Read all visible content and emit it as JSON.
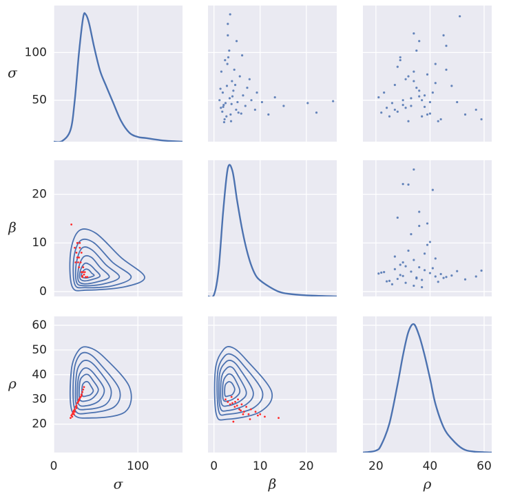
{
  "chart_data": [
    {
      "type": "kde",
      "color": "#4c72b0",
      "ylabel": "σ",
      "x": [
        0,
        10,
        20,
        25,
        30,
        35,
        38,
        42,
        48,
        55,
        62,
        70,
        80,
        90,
        100,
        110,
        130,
        153
      ],
      "values": [
        0,
        0.0001,
        0.002,
        0.007,
        0.015,
        0.021,
        0.0215,
        0.02,
        0.016,
        0.012,
        0.0095,
        0.0068,
        0.0035,
        0.0015,
        0.0008,
        0.0006,
        0.0002,
        0
      ],
      "density_lim": [
        0,
        0.023
      ],
      "xlim": [
        0,
        153
      ],
      "xticks": [
        0,
        100
      ],
      "ylim": [
        6.5,
        149.3
      ],
      "yticks": [
        50,
        100
      ],
      "grid": true
    },
    {
      "type": "scatter",
      "color": "#4c72b0",
      "x": [
        2.1,
        3.4,
        1.8,
        4.2,
        5.1,
        2.7,
        3.9,
        6.3,
        1.5,
        2.9,
        4.8,
        7.2,
        3.1,
        2.3,
        5.6,
        8.1,
        1.9,
        3.6,
        4.4,
        2.5,
        6.8,
        9.3,
        3.3,
        1.2,
        2.8,
        5.3,
        4.0,
        3.7,
        7.7,
        2.0,
        1.6,
        4.6,
        3.0,
        5.9,
        2.4,
        10.4,
        11.8,
        13.2,
        15.1,
        20.3,
        22.2,
        25.8,
        3.5,
        3.0,
        4.9,
        6.1,
        8.9,
        2.2,
        1.4,
        3.8
      ],
      "y": [
        45,
        52,
        38,
        60,
        48,
        33,
        70,
        55,
        42,
        88,
        40,
        63,
        95,
        30,
        75,
        50,
        58,
        35,
        82,
        47,
        44,
        58,
        102,
        50,
        65,
        37,
        54,
        28,
        72,
        43,
        80,
        66,
        118,
        36,
        92,
        48,
        35,
        53,
        44,
        47,
        37,
        49,
        140,
        130,
        112,
        97,
        40,
        27,
        62,
        46
      ],
      "xlim": [
        -1.3,
        26.6
      ],
      "xticks": [
        0,
        10,
        20
      ],
      "ylim": [
        6.5,
        149.3
      ],
      "yticks": [
        50,
        100
      ],
      "grid": true
    },
    {
      "type": "scatter",
      "color": "#4c72b0",
      "x": [
        30,
        33,
        28,
        36,
        40,
        25,
        34,
        38,
        31,
        42,
        27,
        35,
        29,
        44,
        32,
        37,
        23,
        39,
        46,
        26,
        33,
        41,
        35,
        30,
        48,
        22,
        36,
        43,
        31,
        38,
        34,
        27,
        45,
        40,
        29,
        50,
        53,
        21,
        57,
        59,
        34,
        36,
        46,
        51,
        32,
        28,
        39,
        24,
        42,
        37
      ],
      "y": [
        45,
        52,
        38,
        60,
        48,
        33,
        70,
        55,
        42,
        88,
        40,
        63,
        95,
        30,
        75,
        50,
        58,
        35,
        82,
        47,
        44,
        58,
        102,
        50,
        65,
        37,
        54,
        28,
        72,
        43,
        80,
        66,
        118,
        36,
        92,
        48,
        35,
        53,
        40,
        30,
        120,
        112,
        107,
        138,
        28,
        85,
        77,
        42,
        68,
        33
      ],
      "xlim": [
        15.2,
        62.8
      ],
      "xticks": [
        20,
        40,
        60
      ],
      "ylim": [
        6.5,
        149.3
      ],
      "yticks": [
        50,
        100
      ],
      "grid": true
    },
    {
      "type": "contour",
      "color": "#4c72b0",
      "ylabel": "β",
      "levels": [
        {
          "x": [
            22,
            20,
            30,
            50,
            80,
            108,
            85,
            40
          ],
          "y": [
            1,
            8,
            12.5,
            12,
            7,
            3,
            1,
            0.3
          ]
        },
        {
          "x": [
            25,
            24,
            32,
            48,
            70,
            92,
            70,
            38
          ],
          "y": [
            1.5,
            7,
            10.5,
            10,
            6,
            3,
            1.2,
            0.8
          ]
        },
        {
          "x": [
            27,
            27,
            34,
            46,
            62,
            78,
            60,
            36
          ],
          "y": [
            2,
            6,
            9,
            8.5,
            5.5,
            3,
            1.6,
            1.2
          ]
        },
        {
          "x": [
            29,
            30,
            36,
            45,
            55,
            66,
            52,
            36
          ],
          "y": [
            2.4,
            5.2,
            7.2,
            7,
            5,
            3,
            2,
            1.6
          ]
        },
        {
          "x": [
            31,
            32,
            37,
            43,
            49,
            55,
            46,
            36
          ],
          "y": [
            2.8,
            4.5,
            5.8,
            5.5,
            4.5,
            3.2,
            2.5,
            2.2
          ]
        },
        {
          "x": [
            33,
            34,
            38,
            42,
            45,
            48,
            42,
            37
          ],
          "y": [
            3.1,
            4,
            4.6,
            4.4,
            3.8,
            3.3,
            2.9,
            2.8
          ]
        }
      ],
      "points": {
        "color": "#ff2a2a",
        "x": [
          21,
          25,
          27,
          28,
          30,
          32,
          30,
          33,
          35,
          36,
          34,
          38,
          31,
          29,
          33,
          35,
          37,
          28,
          26,
          40,
          31,
          34
        ],
        "y": [
          13.8,
          9,
          8,
          10,
          7,
          6,
          5,
          4,
          4,
          3.5,
          3,
          3,
          9,
          6,
          8,
          5,
          4,
          7,
          6,
          3,
          10,
          3.2
        ]
      },
      "xlim": [
        0,
        153
      ],
      "xticks": [
        0,
        100
      ],
      "ylim": [
        -1,
        27
      ],
      "yticks": [
        0,
        10,
        20
      ],
      "grid": true
    },
    {
      "type": "kde",
      "color": "#4c72b0",
      "x": [
        -1.3,
        0,
        1,
        2,
        3,
        4,
        5,
        6,
        7,
        8,
        9,
        10,
        12,
        14,
        16,
        20,
        26.6
      ],
      "values": [
        0,
        0.003,
        0.05,
        0.16,
        0.24,
        0.235,
        0.18,
        0.13,
        0.09,
        0.06,
        0.04,
        0.03,
        0.018,
        0.009,
        0.005,
        0.002,
        0
      ],
      "density_lim": [
        0,
        0.255
      ],
      "xlim": [
        -1.3,
        26.6
      ],
      "xticks": [
        0,
        10,
        20
      ],
      "ylim": [
        -1,
        27
      ],
      "yticks": [
        0,
        10,
        20
      ],
      "grid": true
    },
    {
      "type": "scatter",
      "color": "#4c72b0",
      "x": [
        30,
        33,
        28,
        36,
        40,
        25,
        34,
        38,
        31,
        42,
        27,
        35,
        29,
        44,
        32,
        37,
        23,
        39,
        46,
        26,
        33,
        41,
        35,
        30,
        48,
        22,
        36,
        43,
        31,
        38,
        34,
        27,
        45,
        40,
        29,
        50,
        53,
        21,
        57,
        59,
        34,
        30,
        32,
        41,
        36,
        28,
        39,
        24,
        42,
        37
      ],
      "y": [
        3.2,
        4.1,
        2.6,
        5.0,
        3.8,
        2.2,
        6.5,
        4.4,
        1.8,
        3.1,
        7.2,
        2.9,
        5.5,
        3.6,
        8.4,
        2.4,
        4.0,
        9.6,
        3.0,
        1.5,
        11.8,
        4.8,
        2.7,
        6.0,
        3.3,
        3.9,
        13.5,
        2.0,
        5.2,
        7.8,
        1.2,
        4.6,
        2.8,
        10.2,
        3.4,
        4.2,
        2.5,
        3.7,
        3.1,
        4.3,
        25.1,
        22.1,
        22.0,
        20.9,
        16.4,
        15.2,
        14.0,
        2.1,
        6.8,
        0.9
      ],
      "xlim": [
        15.2,
        62.8
      ],
      "xticks": [
        20,
        40,
        60
      ],
      "ylim": [
        -1,
        27
      ],
      "yticks": [
        0,
        10,
        20
      ],
      "grid": true
    },
    {
      "type": "contour",
      "color": "#4c72b0",
      "ylabel": "ρ",
      "xlabel": "σ",
      "levels": [
        {
          "x": [
            22,
            21,
            30,
            42,
            60,
            90,
            85,
            45
          ],
          "y": [
            25,
            42,
            50,
            51,
            47,
            35,
            25,
            22.5
          ]
        },
        {
          "x": [
            25,
            24,
            31,
            42,
            56,
            78,
            72,
            42
          ],
          "y": [
            26,
            41,
            48,
            48.5,
            44,
            34,
            27,
            24.5
          ]
        },
        {
          "x": [
            27,
            27,
            33,
            42,
            53,
            68,
            62,
            40
          ],
          "y": [
            27.5,
            40,
            45,
            45.5,
            42,
            34,
            28,
            26
          ]
        },
        {
          "x": [
            29,
            29,
            34,
            41,
            50,
            60,
            54,
            40
          ],
          "y": [
            28.5,
            38,
            42,
            42.5,
            39.5,
            34,
            29.5,
            27.5
          ]
        },
        {
          "x": [
            31,
            31,
            35,
            41,
            47,
            53,
            48,
            40
          ],
          "y": [
            30,
            37,
            39.5,
            40,
            37.5,
            34,
            31,
            29.5
          ]
        },
        {
          "x": [
            34,
            34,
            37,
            41,
            44,
            47,
            44,
            40
          ],
          "y": [
            31.5,
            35.5,
            37,
            37,
            35.5,
            33.5,
            32,
            31.5
          ]
        }
      ],
      "points": {
        "color": "#ff2a2a",
        "x": [
          20,
          21,
          22,
          23,
          24,
          25,
          26,
          27,
          28,
          29,
          30,
          31,
          32,
          33,
          34,
          35,
          36,
          23,
          25,
          27,
          30,
          33,
          22,
          24
        ],
        "y": [
          22.5,
          23.5,
          24,
          25,
          25.5,
          26,
          27,
          27.5,
          28.5,
          29,
          30,
          30.5,
          31,
          32,
          33,
          34,
          35,
          24.5,
          25,
          26.5,
          29.5,
          31.5,
          23,
          24
        ]
      },
      "xlim": [
        0,
        153
      ],
      "xticks": [
        0,
        100
      ],
      "ylim": [
        8.5,
        63.6
      ],
      "yticks": [
        20,
        30,
        40,
        50,
        60
      ],
      "grid": true
    },
    {
      "type": "contour",
      "color": "#4c72b0",
      "xlabel": "β",
      "levels": [
        {
          "x": [
            0.5,
            0.3,
            2,
            4,
            7,
            12.5,
            10,
            3
          ],
          "y": [
            24,
            42,
            50,
            51,
            46,
            33,
            25,
            22
          ]
        },
        {
          "x": [
            1,
            0.8,
            2.3,
            4,
            6.3,
            10.5,
            8.5,
            3
          ],
          "y": [
            25.5,
            41,
            47.5,
            48,
            44,
            33,
            26.5,
            24
          ]
        },
        {
          "x": [
            1.3,
            1.2,
            2.5,
            4,
            5.7,
            8.5,
            7,
            3.1
          ],
          "y": [
            27,
            40,
            45,
            45.5,
            42,
            33,
            28,
            25.5
          ]
        },
        {
          "x": [
            1.6,
            1.6,
            2.7,
            3.9,
            5.1,
            7,
            5.8,
            3.2
          ],
          "y": [
            28.5,
            38.5,
            42.5,
            43,
            40,
            33,
            29.5,
            27.5
          ]
        },
        {
          "x": [
            2,
            2,
            2.9,
            3.8,
            4.6,
            5.6,
            4.8,
            3.3
          ],
          "y": [
            30,
            37,
            40,
            40,
            38,
            33.5,
            31,
            29.5
          ]
        },
        {
          "x": [
            2.4,
            2.4,
            3,
            3.6,
            4.1,
            4.5,
            4,
            3.3
          ],
          "y": [
            31.5,
            35.5,
            37,
            37,
            36,
            34,
            32,
            31.5
          ]
        }
      ],
      "points": {
        "color": "#ff2a2a",
        "x": [
          2.5,
          3,
          3.5,
          4,
          4.5,
          5,
          5.5,
          6,
          6.5,
          7,
          7.5,
          8,
          9,
          10,
          11,
          14,
          3.8,
          4.6,
          5.2,
          6.3,
          7.8,
          9.5,
          4.2,
          5.8
        ],
        "y": [
          30,
          29,
          28,
          28.5,
          27,
          27.5,
          26,
          28,
          25,
          27,
          24,
          26,
          25,
          24,
          23,
          22.5,
          31,
          29,
          30,
          24,
          22,
          23.5,
          21,
          25.5
        ]
      },
      "xlim": [
        -1.3,
        26.6
      ],
      "xticks": [
        0,
        10,
        20
      ],
      "ylim": [
        8.5,
        63.6
      ],
      "yticks": [
        20,
        30,
        40,
        50,
        60
      ],
      "grid": true
    },
    {
      "type": "kde",
      "color": "#4c72b0",
      "xlabel": "ρ",
      "x": [
        15.2,
        20,
        22,
        25,
        28,
        30,
        32,
        34,
        36,
        38,
        40,
        42,
        45,
        48,
        52,
        56,
        62.8
      ],
      "values": [
        0,
        0.001,
        0.004,
        0.015,
        0.035,
        0.05,
        0.062,
        0.066,
        0.06,
        0.05,
        0.038,
        0.025,
        0.013,
        0.007,
        0.002,
        0.0005,
        0
      ],
      "density_lim": [
        0,
        0.07
      ],
      "xlim": [
        15.2,
        62.8
      ],
      "xticks": [
        20,
        40,
        60
      ],
      "ylim": [
        8.5,
        63.6
      ],
      "yticks": [
        20,
        30,
        40,
        50,
        60
      ],
      "grid": true
    }
  ]
}
